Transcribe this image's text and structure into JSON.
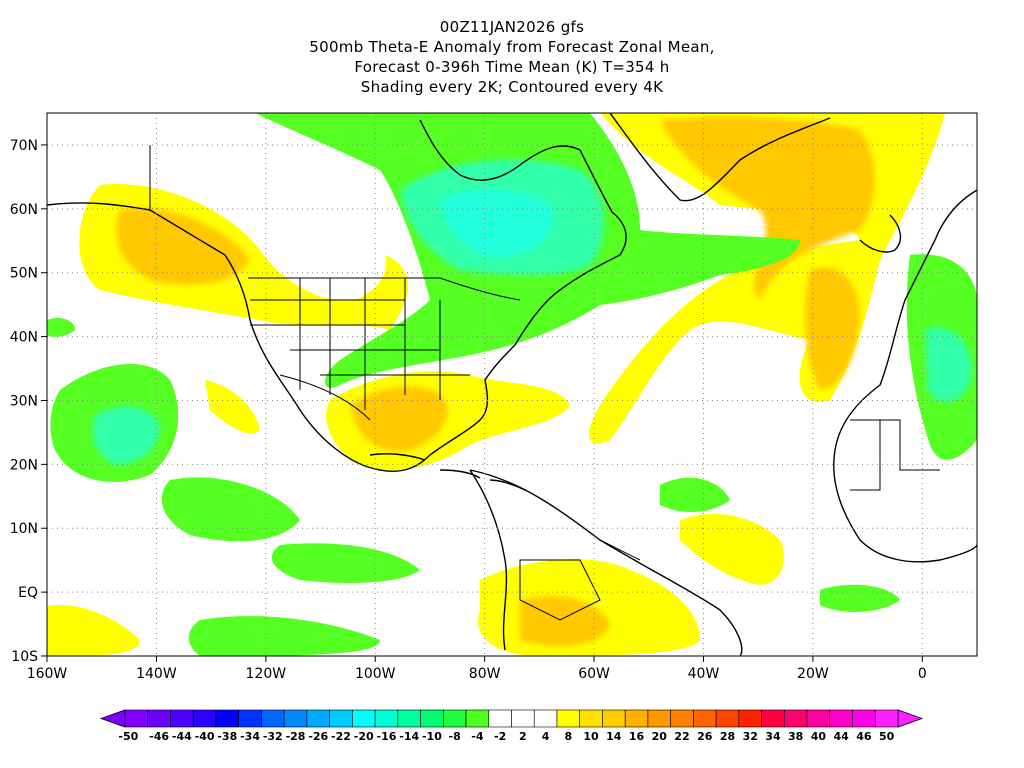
{
  "title_lines": [
    "00Z11JAN2026 gfs",
    "500mb Theta-E Anomaly from Forecast Zonal Mean,",
    "Forecast 0-396h Time Mean (K) T=354 h",
    "Shading every 2K; Contoured every 4K"
  ],
  "map": {
    "lon_range": [
      -160,
      10
    ],
    "lat_range": [
      -10,
      75
    ],
    "x_ticks": [
      {
        "lon": -160,
        "label": "160W"
      },
      {
        "lon": -140,
        "label": "140W"
      },
      {
        "lon": -120,
        "label": "120W"
      },
      {
        "lon": -100,
        "label": "100W"
      },
      {
        "lon": -80,
        "label": "80W"
      },
      {
        "lon": -60,
        "label": "60W"
      },
      {
        "lon": -40,
        "label": "40W"
      },
      {
        "lon": -20,
        "label": "20W"
      },
      {
        "lon": 0,
        "label": "0"
      }
    ],
    "y_ticks": [
      {
        "lat": 70,
        "label": "70N"
      },
      {
        "lat": 60,
        "label": "60N"
      },
      {
        "lat": 50,
        "label": "50N"
      },
      {
        "lat": 40,
        "label": "40N"
      },
      {
        "lat": 30,
        "label": "30N"
      },
      {
        "lat": 20,
        "label": "20N"
      },
      {
        "lat": 10,
        "label": "10N"
      },
      {
        "lat": 0,
        "label": "EQ"
      },
      {
        "lat": -10,
        "label": "10S"
      }
    ]
  },
  "colorbar": {
    "labels": [
      "-50",
      "-46",
      "-44",
      "-40",
      "-38",
      "-34",
      "-32",
      "-28",
      "-26",
      "-22",
      "-20",
      "-16",
      "-14",
      "-10",
      "-8",
      "-4",
      "-2",
      "2",
      "4",
      "8",
      "10",
      "14",
      "16",
      "20",
      "22",
      "26",
      "28",
      "32",
      "34",
      "38",
      "40",
      "44",
      "46",
      "50"
    ],
    "colors": [
      "#8000ff",
      "#6a00ff",
      "#4c00ff",
      "#2c00ff",
      "#0000ff",
      "#0033ff",
      "#0066ff",
      "#0088ff",
      "#00aaff",
      "#00ccff",
      "#00ffff",
      "#00ffd0",
      "#00ffa0",
      "#00ff70",
      "#20ff40",
      "#50ff20",
      "#ffffff",
      "#ffffff",
      "#ffffff",
      "#ffff00",
      "#ffe000",
      "#ffcc00",
      "#ffb000",
      "#ff9900",
      "#ff8000",
      "#ff6600",
      "#ff4400",
      "#ff2200",
      "#ff0040",
      "#ff0070",
      "#ff00a0",
      "#ff00c8",
      "#ff00e8",
      "#ff20ff"
    ],
    "min_color": "#8000ff",
    "max_color": "#ff20ff"
  }
}
